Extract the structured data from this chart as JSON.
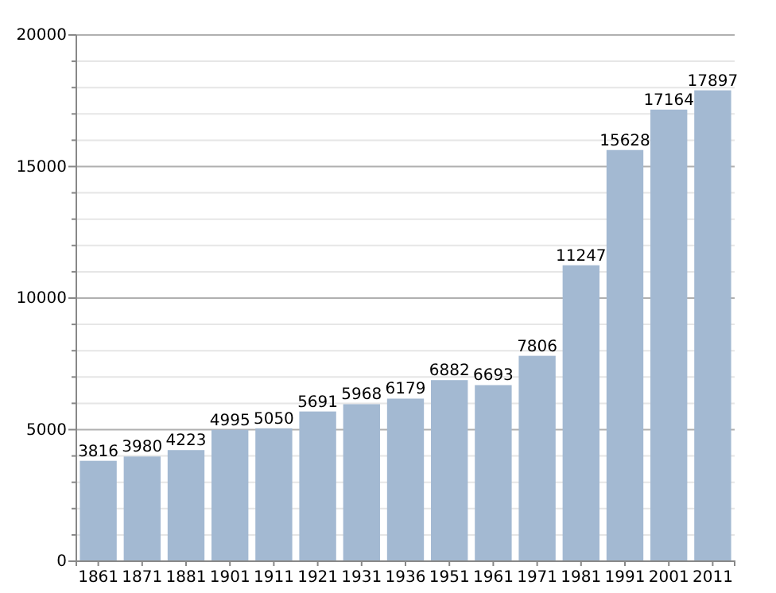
{
  "chart_data": {
    "type": "bar",
    "categories": [
      "1861",
      "1871",
      "1881",
      "1901",
      "1911",
      "1921",
      "1931",
      "1936",
      "1951",
      "1961",
      "1971",
      "1981",
      "1991",
      "2001",
      "2011"
    ],
    "values": [
      3816,
      3980,
      4223,
      4995,
      5050,
      5691,
      5968,
      6179,
      6882,
      6693,
      7806,
      11247,
      15628,
      17164,
      17897
    ],
    "color": "#a3b9d2",
    "ylim": [
      0,
      20000
    ],
    "yticks": [
      0,
      {
        "value": 1000,
        "label": null
      },
      {
        "value": 2000,
        "label": null
      },
      {
        "value": 3000,
        "label": null
      },
      {
        "value": 4000,
        "label": null
      },
      5000,
      {
        "value": 6000,
        "label": null
      },
      {
        "value": 7000,
        "label": null
      },
      {
        "value": 8000,
        "label": null
      },
      {
        "value": 9000,
        "label": null
      },
      10000,
      {
        "value": 11000,
        "label": null
      },
      {
        "value": 12000,
        "label": null
      },
      {
        "value": 13000,
        "label": null
      },
      {
        "value": 14000,
        "label": null
      },
      15000,
      {
        "value": 16000,
        "label": null
      },
      {
        "value": 17000,
        "label": null
      },
      {
        "value": 18000,
        "label": null
      },
      {
        "value": 19000,
        "label": null
      },
      20000
    ],
    "grid": true,
    "data_labels": true
  }
}
